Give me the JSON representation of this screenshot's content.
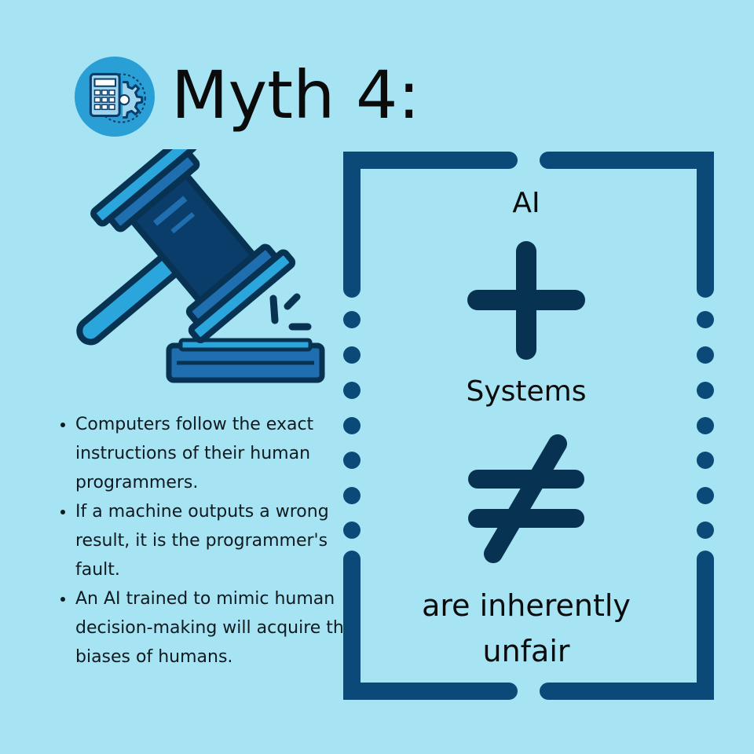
{
  "header": {
    "title": "Myth 4:",
    "logo_icon": "calculator-gear-icon"
  },
  "illustration": {
    "icon": "gavel-icon"
  },
  "bullets": [
    "Computers follow the exact instructions of their human programmers.",
    "If a machine outputs a wrong result, it is the programmer's fault.",
    "An AI trained to mimic human decision-making will acquire the biases of humans."
  ],
  "equation": {
    "term1": "AI",
    "operator1_icon": "plus-icon",
    "term2": "Systems",
    "operator2_icon": "not-equal-icon",
    "conclusion_line1": "are inherently",
    "conclusion_line2": "unfair"
  },
  "colors": {
    "background": "#a6e3f3",
    "navy": "#0b3d6b",
    "dark_navy": "#083252",
    "mid_blue": "#1f6fb0",
    "light_blue": "#2aa6dc"
  }
}
